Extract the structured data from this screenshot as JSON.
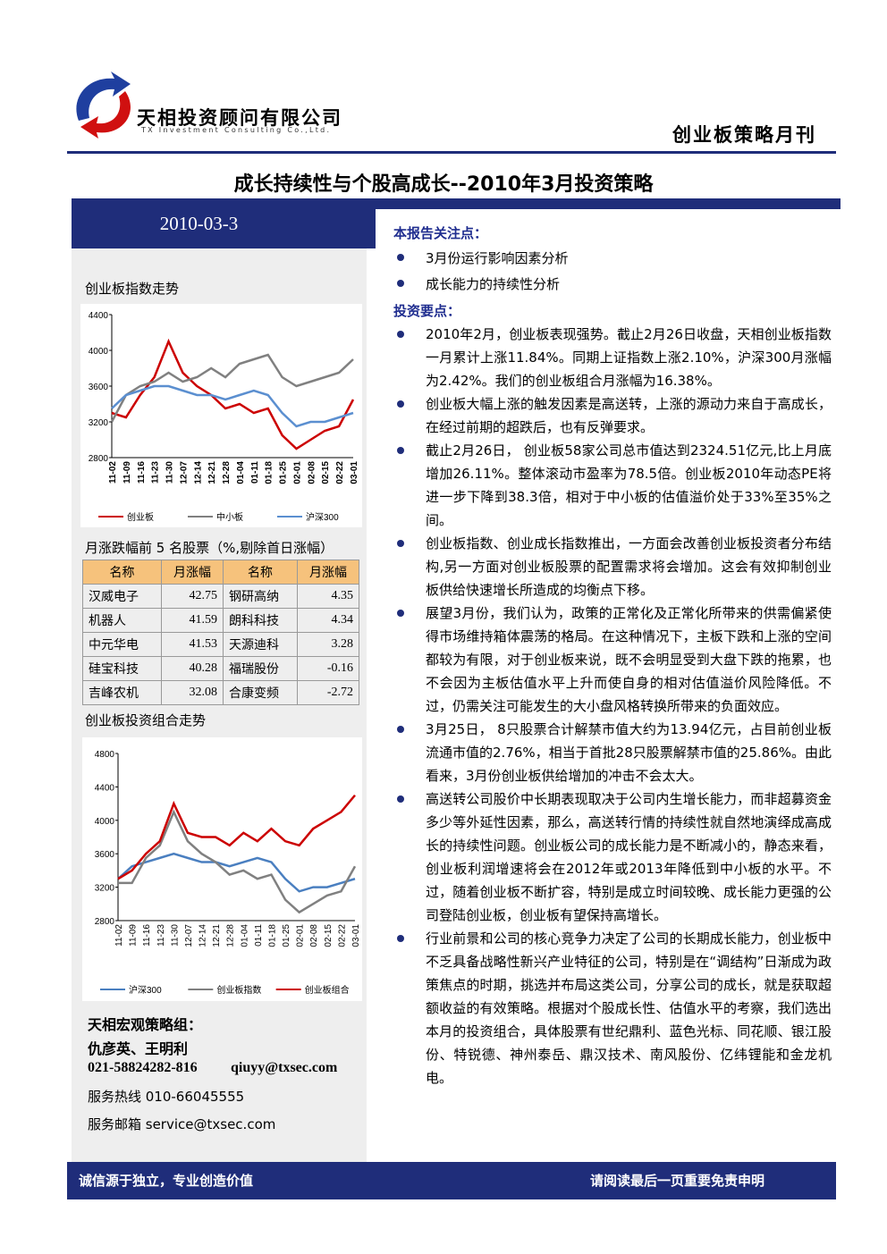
{
  "header": {
    "company_cn": "天相投资顾问有限公司",
    "company_en": "TX Investment Consulting Co.,Ltd.",
    "report_type": "创业板策略月刊"
  },
  "title": "成长持续性与个股高成长--2010年3月投资策略",
  "date": "2010-03-3",
  "focus": {
    "heading": "本报告关注点：",
    "items": [
      "3月份运行影响因素分析",
      "成长能力的持续性分析"
    ]
  },
  "key_points": {
    "heading": "投资要点：",
    "items": [
      "2010年2月，创业板表现强势。截止2月26日收盘，天相创业板指数一月累计上涨11.84%。同期上证指数上涨2.10%，沪深300月涨幅为2.42%。我们的创业板组合月涨幅为16.38%。",
      "创业板大幅上涨的触发因素是高送转，上涨的源动力来自于高成长，在经过前期的超跌后，也有反弹要求。",
      "截止2月26日， 创业板58家公司总市值达到2324.51亿元,比上月底增加26.11%。整体滚动市盈率为78.5倍。创业板2010年动态PE将进一步下降到38.3倍，相对于中小板的估值溢价处于33%至35%之间。",
      "创业板指数、创业成长指数推出，一方面会改善创业板投资者分布结构,另一方面对创业板股票的配置需求将会增加。这会有效抑制创业板供给快速增长所造成的均衡点下移。",
      "展望3月份，我们认为，政策的正常化及正常化所带来的供需偏紧使得市场维持箱体震荡的格局。在这种情况下，主板下跌和上涨的空间都较为有限，对于创业板来说，既不会明显受到大盘下跌的拖累，也不会因为主板估值水平上升而使自身的相对估值溢价风险降低。不过，仍需关注可能发生的大小盘风格转换所带来的负面效应。",
      "3月25日， 8只股票合计解禁市值大约为13.94亿元，占目前创业板流通市值的2.76%，相当于首批28只股票解禁市值的25.86%。由此看来，3月份创业板供给增加的冲击不会太大。",
      "高送转公司股价中长期表现取决于公司内生增长能力，而非超募资金多少等外延性因素，那么，高送转行情的持续性就自然地演绎成高成长的持续性问题。创业板公司的成长能力是不断减小的，静态来看，创业板利润增速将会在2012年或2013年降低到中小板的水平。不过，随着创业板不断扩容，特别是成立时间较晚、成长能力更强的公司登陆创业板，创业板有望保持高增长。",
      "行业前景和公司的核心竞争力决定了公司的长期成长能力，创业板中不乏具备战略性新兴产业特征的公司，特别是在“调结构”日渐成为政策焦点的时期，挑选并布局这类公司，分享公司的成长，就是获取超额收益的有效策略。根据对个股成长性、估值水平的考察，我们选出本月的投资组合，具体股票有世纪鼎利、蓝色光标、同花顺、银江股份、特锐德、神州泰岳、鼎汉技术、南风股份、亿纬锂能和金龙机电。"
    ]
  },
  "chart_data": [
    {
      "type": "line",
      "title": "创业板指数走势",
      "categories": [
        "11-02",
        "11-09",
        "11-16",
        "11-23",
        "11-30",
        "12-07",
        "12-14",
        "12-21",
        "12-28",
        "01-04",
        "01-11",
        "01-18",
        "01-25",
        "02-01",
        "02-08",
        "02-15",
        "02-22",
        "03-01"
      ],
      "series": [
        {
          "name": "创业板",
          "color": "#cc0000",
          "values": [
            3300,
            3250,
            3500,
            3700,
            4100,
            3750,
            3600,
            3500,
            3350,
            3400,
            3300,
            3350,
            3050,
            2900,
            3000,
            3100,
            3150,
            3450
          ]
        },
        {
          "name": "中小板",
          "color": "#808080",
          "values": [
            3200,
            3500,
            3600,
            3650,
            3750,
            3650,
            3700,
            3800,
            3700,
            3850,
            3900,
            3950,
            3700,
            3600,
            3650,
            3700,
            3750,
            3900
          ]
        },
        {
          "name": "沪深300",
          "color": "#5b8fd0",
          "values": [
            3350,
            3500,
            3550,
            3600,
            3600,
            3550,
            3500,
            3500,
            3450,
            3500,
            3550,
            3500,
            3300,
            3150,
            3200,
            3200,
            3250,
            3300
          ]
        }
      ],
      "ylim": [
        2800,
        4400
      ],
      "yticks": [
        2800,
        3200,
        3600,
        4000,
        4400
      ]
    },
    {
      "type": "line",
      "title": "创业板投资组合走势",
      "categories": [
        "11-02",
        "11-09",
        "11-16",
        "11-23",
        "11-30",
        "12-07",
        "12-14",
        "12-21",
        "12-28",
        "01-04",
        "01-11",
        "01-18",
        "01-25",
        "02-01",
        "02-08",
        "02-15",
        "02-22",
        "03-01"
      ],
      "series": [
        {
          "name": "沪深300",
          "color": "#4a7fc0",
          "values": [
            3300,
            3450,
            3500,
            3550,
            3600,
            3550,
            3500,
            3500,
            3450,
            3500,
            3550,
            3500,
            3300,
            3150,
            3200,
            3200,
            3250,
            3300
          ]
        },
        {
          "name": "创业板指数",
          "color": "#808080",
          "values": [
            3250,
            3250,
            3550,
            3700,
            4100,
            3750,
            3600,
            3500,
            3350,
            3400,
            3300,
            3350,
            3050,
            2900,
            3000,
            3100,
            3150,
            3450
          ]
        },
        {
          "name": "创业板组合",
          "color": "#cc0000",
          "values": [
            3300,
            3400,
            3600,
            3750,
            4200,
            3850,
            3800,
            3800,
            3700,
            3850,
            3750,
            3900,
            3750,
            3700,
            3900,
            4000,
            4100,
            4300
          ]
        }
      ],
      "ylim": [
        2800,
        4800
      ],
      "yticks": [
        2800,
        3200,
        3600,
        4000,
        4400,
        4800
      ]
    }
  ],
  "table": {
    "title": "月涨跌幅前 5 名股票（%,剔除首日涨幅）",
    "header": [
      "名称",
      "月涨幅",
      "名称",
      "月涨幅"
    ],
    "rows": [
      [
        "汉威电子",
        42.75,
        "钢研高纳",
        4.35
      ],
      [
        "机器人",
        41.59,
        "朗科科技",
        4.34
      ],
      [
        "中元华电",
        41.53,
        "天源迪科",
        3.28
      ],
      [
        "硅宝科技",
        40.28,
        "福瑞股份",
        -0.16
      ],
      [
        "吉峰农机",
        32.08,
        "合康变频",
        -2.72
      ]
    ]
  },
  "contact": {
    "heading": "天相宏观策略组：",
    "names": "仇彦英、王明利",
    "phone": "021-58824282-816",
    "email": "qiuyy@txsec.com",
    "hotline": "服务热线 010-66045555",
    "mailbox": "服务邮箱 service@txsec.com"
  },
  "footer": {
    "left": "诚信源于独立，专业创造价值",
    "right": "请阅读最后一页重要免责申明"
  }
}
